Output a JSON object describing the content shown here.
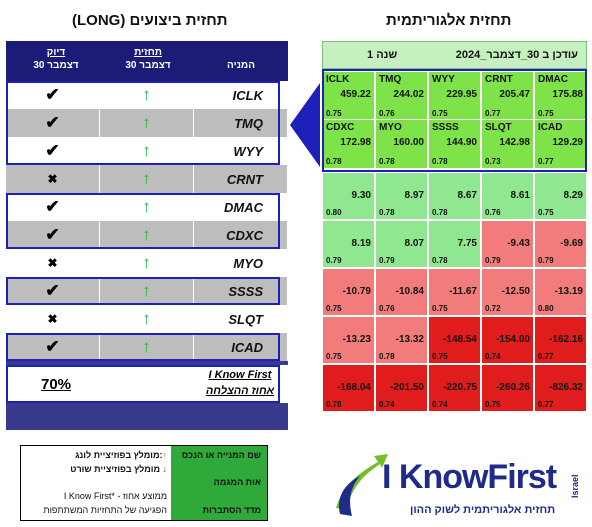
{
  "titles": {
    "left": "(LONG) תחזית ביצועים",
    "right": "תחזית אלגוריתמית"
  },
  "performance": {
    "headers": {
      "company": "המניה",
      "signal": "תחזית",
      "signal_date": "30 דצמבר",
      "accuracy": "דיוק",
      "accuracy_date": "30 דצמבר"
    },
    "rows": [
      {
        "ticker": "ICLK",
        "signal": "up",
        "result": "check",
        "shade": "white",
        "highlight": true
      },
      {
        "ticker": "TMQ",
        "signal": "up",
        "result": "check",
        "shade": "gray",
        "highlight": true
      },
      {
        "ticker": "WYY",
        "signal": "up",
        "result": "check",
        "shade": "white",
        "highlight": true
      },
      {
        "ticker": "CRNT",
        "signal": "up",
        "result": "cross",
        "shade": "gray",
        "highlight": false
      },
      {
        "ticker": "DMAC",
        "signal": "up",
        "result": "check",
        "shade": "white",
        "highlight": true
      },
      {
        "ticker": "CDXC",
        "signal": "up",
        "result": "check",
        "shade": "gray",
        "highlight": true
      },
      {
        "ticker": "MYO",
        "signal": "up",
        "result": "cross",
        "shade": "white",
        "highlight": false
      },
      {
        "ticker": "SSSS",
        "signal": "up",
        "result": "check",
        "shade": "gray",
        "highlight": true
      },
      {
        "ticker": "SLQT",
        "signal": "up",
        "result": "cross",
        "shade": "white",
        "highlight": false
      },
      {
        "ticker": "ICAD",
        "signal": "up",
        "result": "check",
        "shade": "gray",
        "highlight": true
      }
    ],
    "summary": {
      "percent": "70%",
      "brand": "I Know First",
      "brand_sub": "אחוז ההצלחה"
    }
  },
  "heatmap": {
    "header_date": "עודכן ב 30_דצמבר_2024",
    "header_period": "1 שנה",
    "rows": [
      [
        {
          "ticker": "ICLK",
          "value": "459.22",
          "p": "0.75",
          "color": "#7ee348"
        },
        {
          "ticker": "TMQ",
          "value": "244.02",
          "p": "0.76",
          "color": "#7ee348"
        },
        {
          "ticker": "WYY",
          "value": "229.95",
          "p": "0.75",
          "color": "#7ee348"
        },
        {
          "ticker": "CRNT",
          "value": "205.47",
          "p": "0.77",
          "color": "#7ee348"
        },
        {
          "ticker": "DMAC",
          "value": "175.88",
          "p": "0.75",
          "color": "#7ee348"
        }
      ],
      [
        {
          "ticker": "CDXC",
          "value": "172.98",
          "p": "0.78",
          "color": "#7ee348"
        },
        {
          "ticker": "MYO",
          "value": "160.00",
          "p": "0.78",
          "color": "#7ee348"
        },
        {
          "ticker": "SSSS",
          "value": "144.90",
          "p": "0.78",
          "color": "#7ee348"
        },
        {
          "ticker": "SLQT",
          "value": "142.98",
          "p": "0.73",
          "color": "#7ee348"
        },
        {
          "ticker": "ICAD",
          "value": "129.29",
          "p": "0.77",
          "color": "#7ee348"
        }
      ],
      [
        {
          "ticker": "",
          "value": "9.30",
          "p": "0.80",
          "color": "#8fe88f"
        },
        {
          "ticker": "",
          "value": "8.97",
          "p": "0.78",
          "color": "#8fe88f"
        },
        {
          "ticker": "",
          "value": "8.67",
          "p": "0.78",
          "color": "#8fe88f"
        },
        {
          "ticker": "",
          "value": "8.61",
          "p": "0.76",
          "color": "#8fe88f"
        },
        {
          "ticker": "",
          "value": "8.29",
          "p": "0.75",
          "color": "#8fe88f"
        }
      ],
      [
        {
          "ticker": "",
          "value": "8.19",
          "p": "0.79",
          "color": "#8fe88f"
        },
        {
          "ticker": "",
          "value": "8.07",
          "p": "0.79",
          "color": "#8fe88f"
        },
        {
          "ticker": "",
          "value": "7.75",
          "p": "0.78",
          "color": "#8fe88f"
        },
        {
          "ticker": "",
          "value": "-9.43",
          "p": "0.79",
          "color": "#f27c7c"
        },
        {
          "ticker": "",
          "value": "-9.69",
          "p": "0.79",
          "color": "#f27c7c"
        }
      ],
      [
        {
          "ticker": "",
          "value": "-10.79",
          "p": "0.75",
          "color": "#f27c7c"
        },
        {
          "ticker": "",
          "value": "-10.84",
          "p": "0.76",
          "color": "#f27c7c"
        },
        {
          "ticker": "",
          "value": "-11.67",
          "p": "0.75",
          "color": "#f27c7c"
        },
        {
          "ticker": "",
          "value": "-12.50",
          "p": "0.72",
          "color": "#f27c7c"
        },
        {
          "ticker": "",
          "value": "-13.19",
          "p": "0.80",
          "color": "#f27c7c"
        }
      ],
      [
        {
          "ticker": "",
          "value": "-13.23",
          "p": "0.75",
          "color": "#f27c7c"
        },
        {
          "ticker": "",
          "value": "-13.32",
          "p": "0.78",
          "color": "#f27c7c"
        },
        {
          "ticker": "",
          "value": "-148.54",
          "p": "0.75",
          "color": "#e01c1c"
        },
        {
          "ticker": "",
          "value": "-154.00",
          "p": "0.74",
          "color": "#e01c1c"
        },
        {
          "ticker": "",
          "value": "-162.16",
          "p": "0.77",
          "color": "#e01c1c"
        }
      ],
      [
        {
          "ticker": "",
          "value": "-168.04",
          "p": "0.78",
          "color": "#e01c1c"
        },
        {
          "ticker": "",
          "value": "-201.50",
          "p": "0.74",
          "color": "#e01c1c"
        },
        {
          "ticker": "",
          "value": "-220.75",
          "p": "0.74",
          "color": "#e01c1c"
        },
        {
          "ticker": "",
          "value": "-260.26",
          "p": "0.75",
          "color": "#e01c1c"
        },
        {
          "ticker": "",
          "value": "-826.32",
          "p": "0.77",
          "color": "#e01c1c"
        }
      ]
    ]
  },
  "legend": {
    "green1": "שם המנייה או הנכס",
    "green2": "אות המגמה",
    "green3": "מדד הסתברות",
    "long": "מומלץ בפוזיציית לונג:",
    "short": "מומלץ בפוזיציית שורט",
    "note1": "I Know First* - ממוצע אחוז",
    "note2": "הפגיעה של התחזיות המשתתפות",
    "up_arrow": "↑",
    "down_arrow": "↓"
  },
  "logo": {
    "name": "I KnowFirst",
    "country": "Israel",
    "tagline": "תחזית אלגוריתמית לשוק ההון"
  },
  "glyphs": {
    "check": "✔",
    "cross": "✖",
    "up": "↑"
  }
}
